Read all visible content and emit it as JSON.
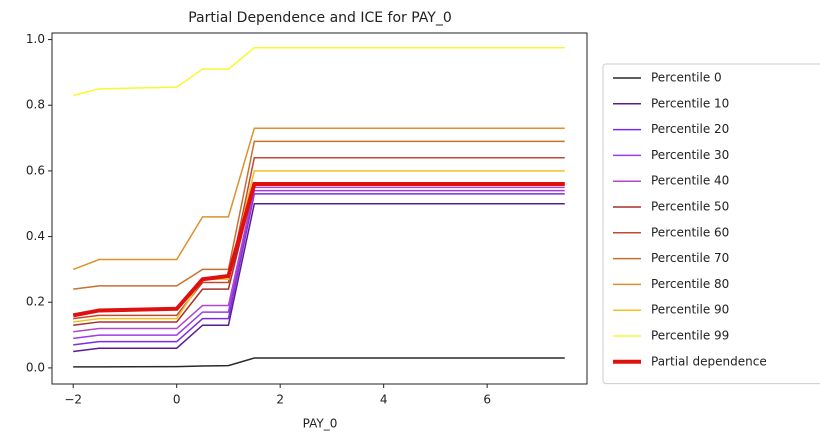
{
  "chart_data": {
    "type": "line",
    "title": "Partial Dependence and ICE for PAY_0",
    "x_label": "PAY_0",
    "x": [
      -2,
      -1.5,
      0,
      0.5,
      1,
      1.5,
      7.5
    ],
    "xlim": [
      -2.41,
      7.93
    ],
    "ylim": [
      -0.049,
      1.02
    ],
    "xticks": [
      {
        "value": -2,
        "label": "−2"
      },
      0,
      2,
      4,
      6
    ],
    "yticks": [
      {
        "value": 0,
        "label": "0.0"
      },
      0.2,
      0.4,
      0.6,
      0.8,
      {
        "value": 1,
        "label": "1.0"
      }
    ],
    "legend": "right",
    "series": [
      {
        "name": "Percentile 0",
        "color": "#2a2a2a",
        "width": 1.5,
        "values": [
          0.003,
          0.003,
          0.004,
          0.006,
          0.007,
          0.03,
          0.03
        ]
      },
      {
        "name": "Percentile 10",
        "color": "#5a1e8c",
        "width": 1.5,
        "values": [
          0.05,
          0.06,
          0.06,
          0.13,
          0.13,
          0.5,
          0.5
        ]
      },
      {
        "name": "Percentile 20",
        "color": "#7a2ee0",
        "width": 1.5,
        "values": [
          0.07,
          0.08,
          0.08,
          0.15,
          0.15,
          0.53,
          0.53
        ]
      },
      {
        "name": "Percentile 30",
        "color": "#9b3ce8",
        "width": 1.5,
        "values": [
          0.09,
          0.1,
          0.1,
          0.17,
          0.17,
          0.54,
          0.54
        ]
      },
      {
        "name": "Percentile 40",
        "color": "#b048c8",
        "width": 1.5,
        "values": [
          0.11,
          0.12,
          0.12,
          0.19,
          0.19,
          0.55,
          0.55
        ]
      },
      {
        "name": "Percentile 50",
        "color": "#a8302a",
        "width": 1.5,
        "values": [
          0.13,
          0.14,
          0.14,
          0.24,
          0.24,
          0.56,
          0.56
        ]
      },
      {
        "name": "Percentile 60",
        "color": "#c04a30",
        "width": 1.5,
        "values": [
          0.15,
          0.16,
          0.16,
          0.26,
          0.26,
          0.64,
          0.64
        ]
      },
      {
        "name": "Percentile 70",
        "color": "#c87030",
        "width": 1.5,
        "values": [
          0.24,
          0.25,
          0.25,
          0.3,
          0.3,
          0.69,
          0.69
        ]
      },
      {
        "name": "Percentile 80",
        "color": "#e0902a",
        "width": 1.5,
        "values": [
          0.3,
          0.33,
          0.33,
          0.46,
          0.46,
          0.73,
          0.73
        ]
      },
      {
        "name": "Percentile 90",
        "color": "#f0c020",
        "width": 1.5,
        "values": [
          0.14,
          0.15,
          0.15,
          0.27,
          0.27,
          0.6,
          0.6
        ]
      },
      {
        "name": "Percentile 99",
        "color": "#f8f830",
        "width": 1.5,
        "values": [
          0.83,
          0.85,
          0.855,
          0.91,
          0.91,
          0.975,
          0.975
        ]
      },
      {
        "name": "Partial dependence",
        "color": "#e01010",
        "width": 4,
        "values": [
          0.16,
          0.175,
          0.18,
          0.27,
          0.28,
          0.56,
          0.56
        ]
      }
    ]
  }
}
